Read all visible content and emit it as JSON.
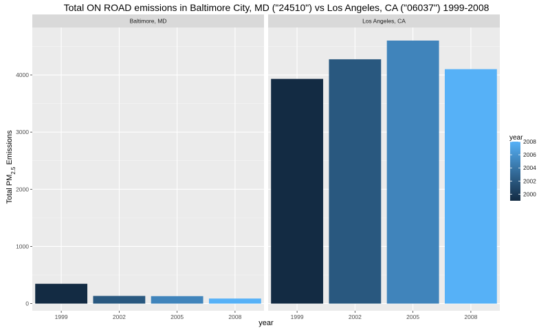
{
  "chart_data": {
    "type": "bar",
    "title": "Total ON ROAD emissions in Baltimore City, MD (\"24510\") vs Los Angeles, CA (\"06037\")  1999-2008",
    "xlabel": "year",
    "ylabel_main": "Total PM",
    "ylabel_sub": "2.5",
    "ylabel_end": " Emissions",
    "categories": [
      "1999",
      "2002",
      "2005",
      "2008"
    ],
    "y_ticks": [
      0,
      1000,
      2000,
      3000,
      4000
    ],
    "ylim": [
      -125,
      4830
    ],
    "grid": true,
    "facets": [
      {
        "label": "Baltimore, MD",
        "values": [
          346.8,
          134.3,
          130.4,
          88.3
        ]
      },
      {
        "label": "Los Angeles, CA",
        "values": [
          3931.1,
          4274.0,
          4601.4,
          4101.3
        ]
      }
    ],
    "legend": {
      "title": "year",
      "position": "right",
      "labels": [
        "2008",
        "2006",
        "2004",
        "2002",
        "2000"
      ],
      "label_values": [
        2008,
        2006,
        2004,
        2002,
        2000
      ],
      "range": [
        1999,
        2008
      ]
    },
    "colors": {
      "low": "#132B43",
      "high": "#56B1F7",
      "panel_bg": "#EBEBEB",
      "strip_bg": "#D9D9D9",
      "grid_major": "#FFFFFF"
    }
  }
}
